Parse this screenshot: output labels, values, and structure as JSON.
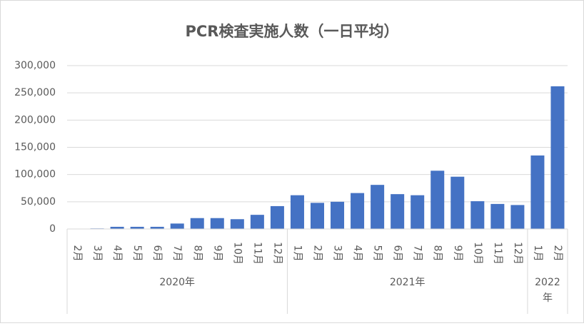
{
  "chart_data": {
    "type": "bar",
    "title": "PCR検査実施人数（一日平均）",
    "groups": [
      {
        "name": "2020年",
        "categories": [
          "2月",
          "3月",
          "4月",
          "5月",
          "6月",
          "7月",
          "8月",
          "9月",
          "10月",
          "11月",
          "12月"
        ]
      },
      {
        "name": "2021年",
        "categories": [
          "1月",
          "2月",
          "3月",
          "4月",
          "5月",
          "6月",
          "7月",
          "8月",
          "9月",
          "10月",
          "11月",
          "12月"
        ]
      },
      {
        "name": "2022年",
        "categories": [
          "1月",
          "2月"
        ]
      }
    ],
    "values": [
      200,
      1000,
      4000,
      4000,
      4000,
      10000,
      20000,
      20000,
      18000,
      26000,
      42000,
      62000,
      48000,
      50000,
      66000,
      81000,
      64000,
      62000,
      107000,
      96000,
      51000,
      46000,
      44000,
      135000,
      262000
    ],
    "color": "#4472c4",
    "ylim": [
      0,
      300000
    ],
    "yticks": [
      0,
      {
        "value": 50000,
        "label": "50,000"
      },
      {
        "value": 100000,
        "label": "100,000"
      },
      {
        "value": 150000,
        "label": "150,000"
      },
      {
        "value": 200000,
        "label": "200,000"
      },
      {
        "value": 250000,
        "label": "250,000"
      },
      {
        "value": 300000,
        "label": "300,000"
      }
    ],
    "grid": true
  }
}
